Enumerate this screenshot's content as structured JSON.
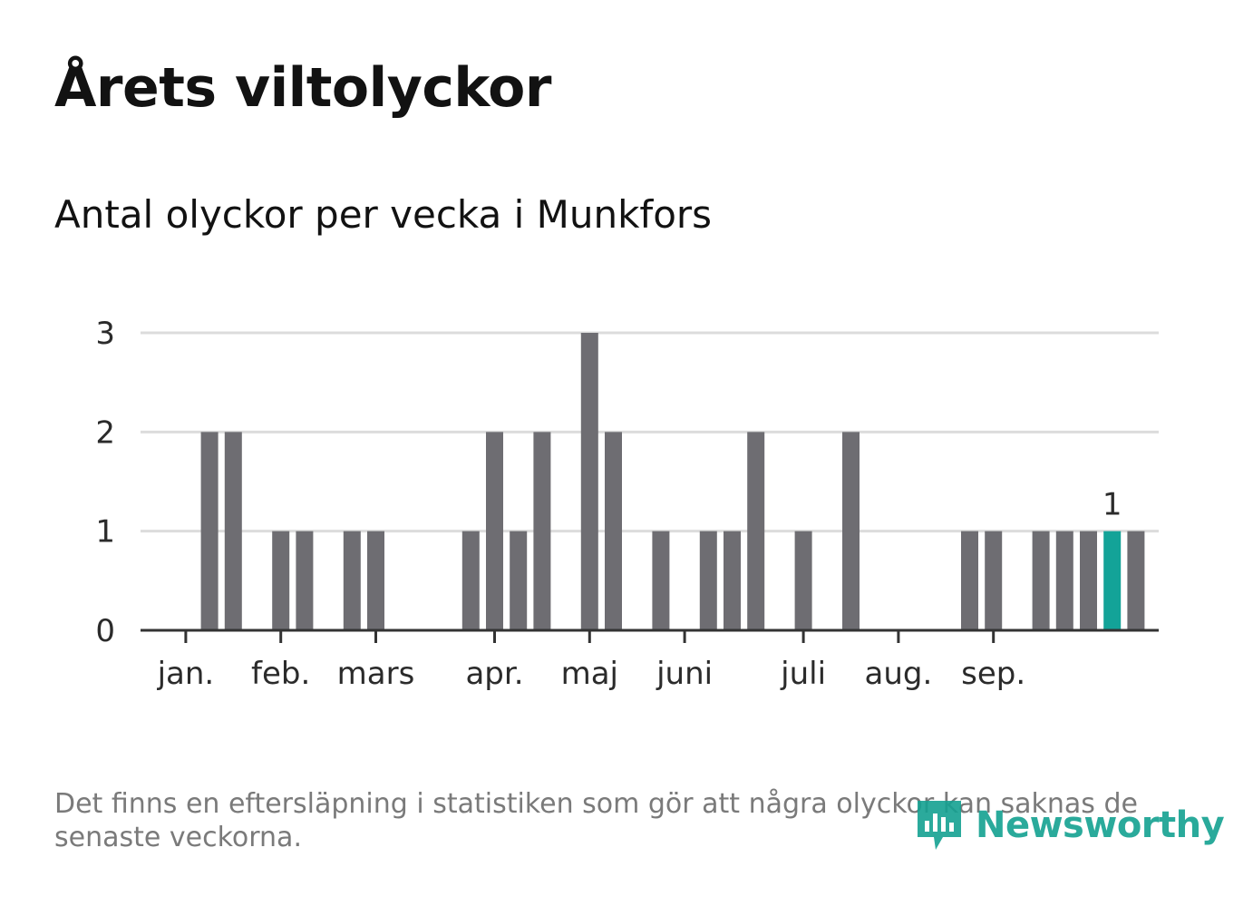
{
  "header": {
    "title": "Årets viltolyckor",
    "subtitle": "Antal olyckor per vecka i Munkfors"
  },
  "footer": {
    "note": "Det finns en eftersläpning i statistiken som gör att några olyckor kan saknas de senaste veckorna.",
    "brand": "Newsworthy",
    "brand_icon": "newsworthy-logo-icon"
  },
  "colors": {
    "bar": "#6e6d72",
    "highlight": "#13a398",
    "grid": "#dcdcdc",
    "axis": "#333333",
    "brand": "#14a191"
  },
  "chart_data": {
    "type": "bar",
    "title": "Antal olyckor per vecka i Munkfors",
    "xlabel": "",
    "ylabel": "",
    "ylim": [
      0,
      3
    ],
    "yticks": [
      0,
      1,
      2,
      3
    ],
    "grid": true,
    "month_ticks": [
      {
        "label": "jan.",
        "week": 2
      },
      {
        "label": "feb.",
        "week": 6
      },
      {
        "label": "mars",
        "week": 10
      },
      {
        "label": "apr.",
        "week": 15
      },
      {
        "label": "maj",
        "week": 19
      },
      {
        "label": "juni",
        "week": 23
      },
      {
        "label": "juli",
        "week": 28
      },
      {
        "label": "aug.",
        "week": 32
      },
      {
        "label": "sep.",
        "week": 36
      }
    ],
    "weeks": [
      1,
      2,
      3,
      4,
      5,
      6,
      7,
      8,
      9,
      10,
      11,
      12,
      13,
      14,
      15,
      16,
      17,
      18,
      19,
      20,
      21,
      22,
      23,
      24,
      25,
      26,
      27,
      28,
      29,
      30,
      31,
      32,
      33,
      34,
      35,
      36,
      37,
      38,
      39,
      40,
      41,
      42,
      43,
      44,
      45
    ],
    "values": [
      0,
      0,
      2,
      2,
      0,
      1,
      1,
      0,
      1,
      1,
      0,
      0,
      0,
      1,
      2,
      1,
      2,
      0,
      3,
      2,
      0,
      1,
      0,
      1,
      1,
      2,
      0,
      1,
      0,
      2,
      0,
      0,
      0,
      0,
      1,
      1,
      0,
      1,
      1,
      1,
      1,
      1,
      0,
      0,
      0
    ],
    "highlight_week": 41,
    "highlight_label": "1"
  }
}
